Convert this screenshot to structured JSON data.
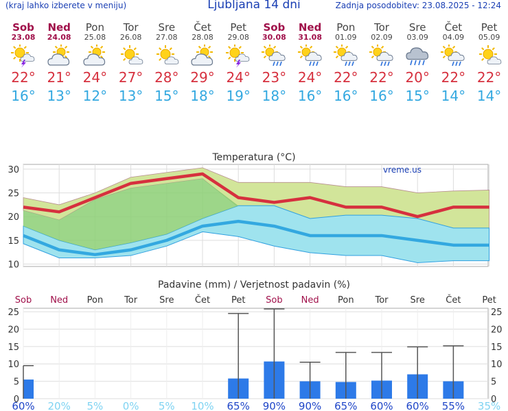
{
  "header": {
    "menu_hint": "(kraj lahko izberete v meniju)",
    "title": "Ljubljana 14 dni",
    "updated": "Zadnja posodobitev: 23.08.2025 - 12:24"
  },
  "forecast": [
    {
      "day": "Sob",
      "date": "23.08",
      "weekend": true,
      "icon": "sun-cloud-storm-icon",
      "tmax": "22°",
      "tmin": "16°"
    },
    {
      "day": "Ned",
      "date": "24.08",
      "weekend": true,
      "icon": "sun-cloud-icon",
      "tmax": "21°",
      "tmin": "13°"
    },
    {
      "day": "Pon",
      "date": "25.08",
      "weekend": false,
      "icon": "sun-cloud-icon",
      "tmax": "24°",
      "tmin": "12°"
    },
    {
      "day": "Tor",
      "date": "26.08",
      "weekend": false,
      "icon": "sun-small-cloud-icon",
      "tmax": "27°",
      "tmin": "13°"
    },
    {
      "day": "Sre",
      "date": "27.08",
      "weekend": false,
      "icon": "sun-small-cloud-icon",
      "tmax": "28°",
      "tmin": "15°"
    },
    {
      "day": "Čet",
      "date": "28.08",
      "weekend": false,
      "icon": "sun-cloud-icon",
      "tmax": "29°",
      "tmin": "18°"
    },
    {
      "day": "Pet",
      "date": "29.08",
      "weekend": false,
      "icon": "sun-cloud-storm-icon",
      "tmax": "24°",
      "tmin": "19°"
    },
    {
      "day": "Sob",
      "date": "30.08",
      "weekend": true,
      "icon": "sun-cloud-rain-icon",
      "tmax": "23°",
      "tmin": "18°"
    },
    {
      "day": "Ned",
      "date": "31.08",
      "weekend": true,
      "icon": "sun-cloud-rain-icon",
      "tmax": "24°",
      "tmin": "16°"
    },
    {
      "day": "Pon",
      "date": "01.09",
      "weekend": false,
      "icon": "sun-cloud-rain-icon",
      "tmax": "22°",
      "tmin": "16°"
    },
    {
      "day": "Tor",
      "date": "02.09",
      "weekend": false,
      "icon": "sun-cloud-rain-icon",
      "tmax": "22°",
      "tmin": "16°"
    },
    {
      "day": "Sre",
      "date": "03.09",
      "weekend": false,
      "icon": "cloud-rain-icon",
      "tmax": "20°",
      "tmin": "15°"
    },
    {
      "day": "Čet",
      "date": "04.09",
      "weekend": false,
      "icon": "sun-cloud-rain-icon",
      "tmax": "22°",
      "tmin": "14°"
    },
    {
      "day": "Pet",
      "date": "05.09",
      "weekend": false,
      "icon": "sun-small-cloud-icon",
      "tmax": "22°",
      "tmin": "14°"
    }
  ],
  "colors": {
    "weekend": "#a0104a",
    "tmax": "#d6303e",
    "tmin": "#33a8e0",
    "max_band": "#d2e59a",
    "min_band": "#9fe3ee",
    "overlap_band": "#8ccf74",
    "bar": "#2d7ae8",
    "prob_high": "#1f46c8",
    "prob_low": "#7fd3f2"
  },
  "chart_data": [
    {
      "type": "line",
      "title": "Temperatura (°C)",
      "watermark": "vreme.us",
      "ylim": [
        9.5,
        31
      ],
      "yticks": [
        10,
        15,
        20,
        25,
        30
      ],
      "x": [
        "23.08",
        "24.08",
        "25.08",
        "26.08",
        "27.08",
        "28.08",
        "29.08",
        "30.08",
        "31.08",
        "01.09",
        "02.09",
        "03.09",
        "04.09",
        "05.09"
      ],
      "series": [
        {
          "values": [
            22,
            21,
            24,
            27,
            28,
            29,
            24,
            23,
            24,
            22,
            22,
            20,
            22,
            22
          ]
        },
        {
          "values": [
            24,
            22.5,
            25,
            28.3,
            29.3,
            30.3,
            27.2,
            27.2,
            27.2,
            26.3,
            26.3,
            25,
            25.4,
            25.6
          ]
        },
        {
          "values": [
            21.3,
            19.3,
            23.6,
            26,
            27,
            28,
            22,
            20.6,
            19.6,
            19.8,
            17.8,
            15.3,
            16.8,
            16.8
          ]
        },
        {
          "values": [
            16,
            13,
            12,
            13,
            15,
            18,
            19,
            18,
            16,
            16,
            16,
            15,
            14,
            14
          ]
        },
        {
          "values": [
            18,
            15,
            13,
            14.5,
            16.3,
            19.6,
            22.3,
            22.3,
            19.6,
            20.3,
            20.3,
            19.6,
            17.6,
            17.6
          ]
        },
        {
          "values": [
            14.3,
            11.3,
            11.3,
            11.8,
            13.8,
            16.8,
            15.8,
            13.8,
            12.4,
            11.8,
            11.8,
            10.3,
            10.7,
            10.7
          ]
        }
      ]
    },
    {
      "type": "bar",
      "title": "Padavine (mm) / Verjetnost padavin (%)",
      "ylim": [
        0,
        26
      ],
      "yticks": [
        0,
        5,
        10,
        15,
        20,
        25
      ],
      "categories": [
        "Sob",
        "Ned",
        "Pon",
        "Tor",
        "Sre",
        "Čet",
        "Pet",
        "Sob",
        "Ned",
        "Pon",
        "Tor",
        "Sre",
        "Čet",
        "Pet"
      ],
      "values": [
        5.5,
        0,
        0,
        0,
        0,
        0,
        5.8,
        10.7,
        5,
        4.8,
        5.2,
        7,
        5,
        0
      ],
      "error_max": [
        9.5,
        0,
        0,
        0,
        0,
        0,
        24.5,
        25.8,
        10.5,
        13.3,
        13.3,
        14.9,
        15.2,
        0
      ],
      "probability": [
        "60%",
        "20%",
        "5%",
        "0%",
        "5%",
        "10%",
        "65%",
        "90%",
        "90%",
        "65%",
        "60%",
        "60%",
        "55%",
        "35%"
      ]
    }
  ]
}
